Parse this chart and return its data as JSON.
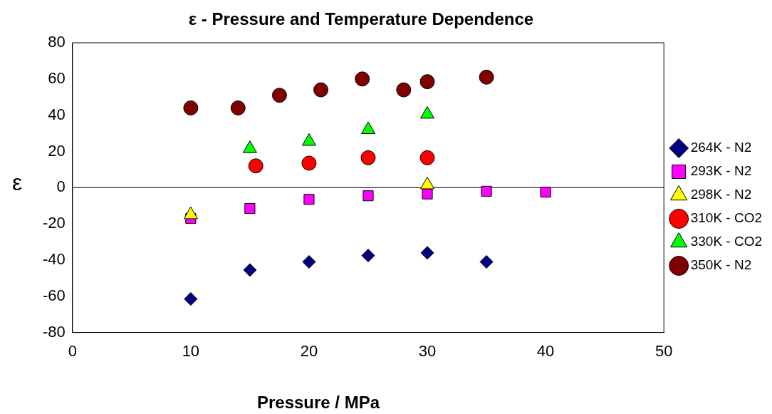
{
  "chart_data": {
    "type": "scatter",
    "title": "ε - Pressure and Temperature Dependence",
    "xlabel": "Pressure / MPa",
    "ylabel": "ε",
    "xlim": [
      0,
      50
    ],
    "xticks": [
      0,
      10,
      20,
      30,
      40,
      50
    ],
    "ylim": [
      -80,
      80
    ],
    "yticks": [
      -80,
      -60,
      -40,
      -20,
      0,
      20,
      40,
      60,
      80
    ],
    "grid": false,
    "legend": "right",
    "ref_lines": [
      {
        "axis": "y",
        "value": 0
      }
    ],
    "series": [
      {
        "name": "264K - N2",
        "color": "#000080",
        "marker": "diamond",
        "x": [
          10,
          15,
          20,
          25,
          30,
          35
        ],
        "values": [
          -61.5,
          -45.5,
          -41,
          -37.5,
          -36,
          -41
        ]
      },
      {
        "name": "293K - N2",
        "color": "#ff00ff",
        "marker": "square",
        "x": [
          10,
          15,
          20,
          25,
          30,
          35,
          40
        ],
        "values": [
          -17,
          -11.5,
          -6.5,
          -4.5,
          -3.5,
          -2,
          -2.5
        ]
      },
      {
        "name": "298K - N2",
        "color": "#ffff00",
        "marker": "triangle",
        "x": [
          10,
          30
        ],
        "values": [
          -15,
          1.5
        ]
      },
      {
        "name": "310K - CO2",
        "color": "#ff0000",
        "marker": "circle",
        "x": [
          15.5,
          20,
          25,
          30
        ],
        "values": [
          12,
          13.5,
          16.5,
          16.5
        ]
      },
      {
        "name": "330K - CO2",
        "color": "#00ff00",
        "marker": "triangle",
        "x": [
          15,
          20,
          25,
          30
        ],
        "values": [
          21.5,
          25.5,
          32,
          40.5
        ]
      },
      {
        "name": "350K - N2",
        "color": "#800000",
        "marker": "circle",
        "x": [
          10,
          14,
          17.5,
          21,
          24.5,
          28,
          30,
          35
        ],
        "values": [
          44,
          44,
          51,
          54,
          60,
          54,
          58.5,
          61
        ]
      }
    ]
  }
}
